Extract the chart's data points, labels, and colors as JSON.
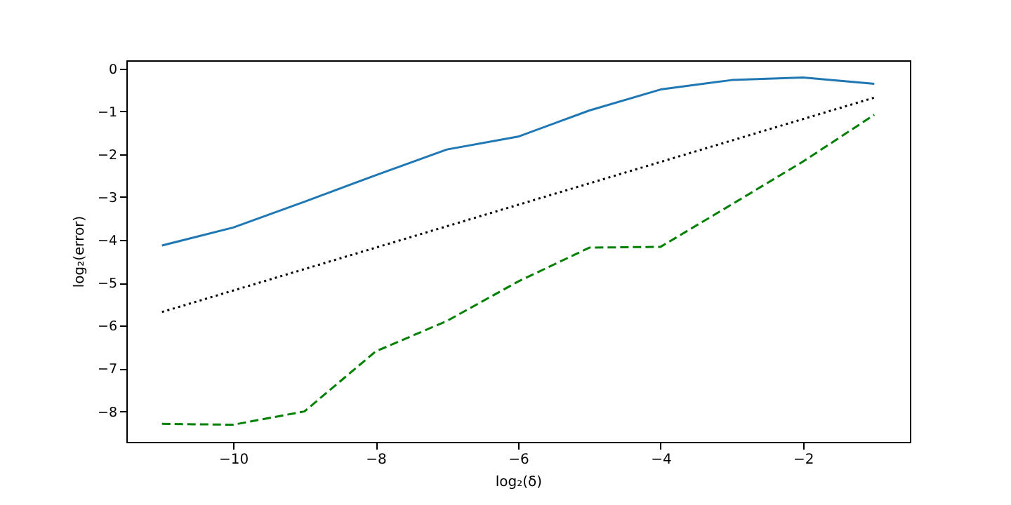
{
  "chart_data": {
    "type": "line",
    "xlabel": "log₂(δ)",
    "ylabel": "log₂(error)",
    "x": [
      -11,
      -10,
      -9,
      -8,
      -7,
      -6,
      -5,
      -4,
      -3,
      -2,
      -1
    ],
    "series": [
      {
        "color": "#1f77b4",
        "line_style": "solid",
        "values": [
          -4.13,
          -3.71,
          -3.11,
          -2.49,
          -1.89,
          -1.59,
          -0.98,
          -0.49,
          -0.27,
          -0.21,
          -0.36
        ]
      },
      {
        "color": "#000000",
        "line_style": "dotted",
        "values": [
          -5.68,
          -5.18,
          -4.68,
          -4.18,
          -3.68,
          -3.18,
          -2.68,
          -2.18,
          -1.68,
          -1.18,
          -0.68
        ]
      },
      {
        "color": "#008000",
        "line_style": "dashed",
        "values": [
          -8.29,
          -8.31,
          -8.0,
          -6.6,
          -5.89,
          -4.97,
          -4.18,
          -4.16,
          -3.17,
          -2.17,
          -1.08
        ]
      }
    ],
    "xlim": [
      -11.5,
      -0.5
    ],
    "ylim": [
      -8.71,
      0.19
    ],
    "xticks": [
      -10,
      -8,
      -6,
      -4,
      -2
    ],
    "yticks": [
      0,
      -1,
      -2,
      -3,
      -4,
      -5,
      -6,
      -7,
      -8
    ],
    "grid": false,
    "marker": "none"
  }
}
